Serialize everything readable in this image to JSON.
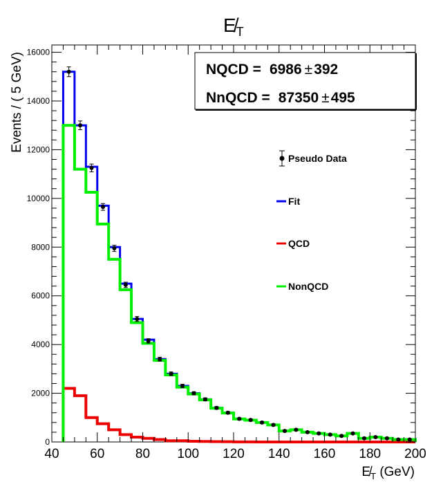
{
  "chart_data": {
    "type": "line",
    "title": "E̸T",
    "title_main": "E̸",
    "title_sub": "T",
    "xlabel": "E̸T (GeV)",
    "xlabel_main": "E̸",
    "xlabel_sub": "T",
    "xlabel_unit": " (GeV)",
    "ylabel": "Events / ( 5 GeV)",
    "xlim": [
      40,
      200
    ],
    "ylim": [
      0,
      16300
    ],
    "xticks": [
      "40",
      "60",
      "80",
      "100",
      "120",
      "140",
      "160",
      "180",
      "200"
    ],
    "xtick_values": [
      40,
      60,
      80,
      100,
      120,
      140,
      160,
      180,
      200
    ],
    "yticks": [
      "0",
      "2000",
      "4000",
      "6000",
      "8000",
      "10000",
      "12000",
      "14000",
      "16000"
    ],
    "ytick_values": [
      0,
      2000,
      4000,
      6000,
      8000,
      10000,
      12000,
      14000,
      16000
    ],
    "bin_edges": [
      45,
      50,
      55,
      60,
      65,
      70,
      75,
      80,
      85,
      90,
      95,
      100,
      105,
      110,
      115,
      120,
      125,
      130,
      135,
      140,
      145,
      150,
      155,
      160,
      165,
      170,
      175,
      180,
      185,
      190,
      195,
      200
    ],
    "stats_box": {
      "line1_label": "NQCD =",
      "line1_value": "6986",
      "line1_pm": "±",
      "line1_err": "392",
      "line2_label": "NnQCD =",
      "line2_value": "87350",
      "line2_pm": "±",
      "line2_err": "495"
    },
    "legend": [
      {
        "label": "Pseudo Data",
        "kind": "marker",
        "color": "#000000"
      },
      {
        "label": "Fit",
        "kind": "line",
        "color": "#0000ee"
      },
      {
        "label": "QCD",
        "kind": "line",
        "color": "#ee0000"
      },
      {
        "label": "NonQCD",
        "kind": "line",
        "color": "#00ee00"
      }
    ],
    "series": [
      {
        "name": "Pseudo Data",
        "type": "points",
        "x": [
          47.5,
          52.5,
          57.5,
          62.5,
          67.5,
          72.5,
          77.5,
          82.5,
          87.5,
          92.5,
          97.5,
          102.5,
          107.5,
          112.5,
          117.5,
          122.5,
          127.5,
          132.5,
          137.5,
          142.5,
          147.5,
          152.5,
          157.5,
          162.5,
          167.5,
          172.5,
          177.5,
          182.5,
          187.5,
          192.5,
          197.5
        ],
        "y": [
          15200,
          13000,
          11250,
          9650,
          7950,
          6450,
          5050,
          4150,
          3400,
          2800,
          2300,
          2000,
          1750,
          1400,
          1200,
          950,
          900,
          800,
          700,
          450,
          500,
          400,
          350,
          300,
          250,
          350,
          150,
          200,
          150,
          100,
          100
        ],
        "err": [
          200,
          180,
          160,
          140,
          130,
          110,
          100,
          90,
          80,
          75,
          70,
          65,
          60,
          55,
          50,
          45,
          45,
          40,
          40,
          35,
          35,
          30,
          30,
          30,
          25,
          30,
          25,
          25,
          20,
          20,
          20
        ]
      },
      {
        "name": "Fit",
        "type": "step",
        "color": "#0000ee",
        "values": [
          15200,
          13000,
          11300,
          9700,
          8000,
          6500,
          5050,
          4200,
          3400,
          2800,
          2300,
          2000,
          1750,
          1400,
          1200,
          950,
          900,
          800,
          700,
          450,
          500,
          400,
          350,
          300,
          250,
          350,
          150,
          200,
          150,
          100,
          100
        ]
      },
      {
        "name": "QCD",
        "type": "step",
        "color": "#ee0000",
        "values": [
          2200,
          1900,
          1000,
          750,
          500,
          300,
          200,
          150,
          100,
          50,
          50,
          30,
          20,
          15,
          10,
          5,
          5,
          0,
          0,
          0,
          0,
          0,
          0,
          0,
          0,
          0,
          0,
          0,
          0,
          0,
          0
        ]
      },
      {
        "name": "NonQCD",
        "type": "step",
        "color": "#00ee00",
        "values": [
          13000,
          11200,
          10250,
          8950,
          7500,
          6250,
          4900,
          4050,
          3350,
          2750,
          2250,
          1970,
          1730,
          1385,
          1190,
          945,
          895,
          800,
          700,
          450,
          500,
          400,
          350,
          300,
          250,
          350,
          150,
          200,
          150,
          100,
          100
        ]
      }
    ],
    "grid": false,
    "legend_placement": "right"
  }
}
